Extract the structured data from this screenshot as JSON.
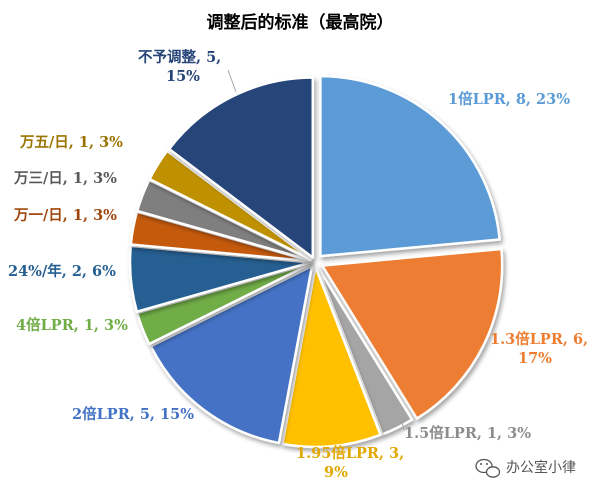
{
  "chart_data": {
    "type": "pie",
    "title": "调整后的标准（最高院）",
    "legend": "none",
    "slices": [
      {
        "name": "1倍LPR",
        "value": 8,
        "percent": "23%",
        "label_lines": [
          "1倍LPR, 8, 23%"
        ],
        "color": "#5b9bd5",
        "label_color": "#5b9bd5"
      },
      {
        "name": "1.3倍LPR",
        "value": 6,
        "percent": "17%",
        "label_lines": [
          "1.3倍LPR, 6,",
          "17%"
        ],
        "color": "#ed7d31",
        "label_color": "#ed7d31"
      },
      {
        "name": "1.5倍LPR",
        "value": 1,
        "percent": "3%",
        "label_lines": [
          "1.5倍LPR, 1, 3%"
        ],
        "color": "#a5a5a5",
        "label_color": "#8c8c8c"
      },
      {
        "name": "1.95倍LPR",
        "value": 3,
        "percent": "9%",
        "label_lines": [
          "1.95倍LPR, 3,",
          "9%"
        ],
        "color": "#ffc000",
        "label_color": "#e0a800"
      },
      {
        "name": "2倍LPR",
        "value": 5,
        "percent": "15%",
        "label_lines": [
          "2倍LPR, 5, 15%"
        ],
        "color": "#4472c4",
        "label_color": "#4472c4"
      },
      {
        "name": "4倍LPR",
        "value": 1,
        "percent": "3%",
        "label_lines": [
          "4倍LPR, 1, 3%"
        ],
        "color": "#70ad47",
        "label_color": "#70ad47"
      },
      {
        "name": "24%/年",
        "value": 2,
        "percent": "6%",
        "label_lines": [
          "24%/年, 2, 6%"
        ],
        "color": "#255e91",
        "label_color": "#255e91"
      },
      {
        "name": "万一/日",
        "value": 1,
        "percent": "3%",
        "label_lines": [
          "万一/日, 1, 3%"
        ],
        "color": "#c55a11",
        "label_color": "#a0470e"
      },
      {
        "name": "万三/日",
        "value": 1,
        "percent": "3%",
        "label_lines": [
          "万三/日, 1, 3%"
        ],
        "color": "#7f7f7f",
        "label_color": "#595959"
      },
      {
        "name": "万五/日",
        "value": 1,
        "percent": "3%",
        "label_lines": [
          "万五/日, 1, 3%"
        ],
        "color": "#bf9000",
        "label_color": "#9a7400"
      },
      {
        "name": "不予调整",
        "value": 5,
        "percent": "15%",
        "label_lines": [
          "不予调整, 5,",
          "15%"
        ],
        "color": "#264478",
        "label_color": "#264478"
      }
    ]
  },
  "watermark": {
    "text": "办公室小律",
    "icon": "wechat-icon"
  }
}
